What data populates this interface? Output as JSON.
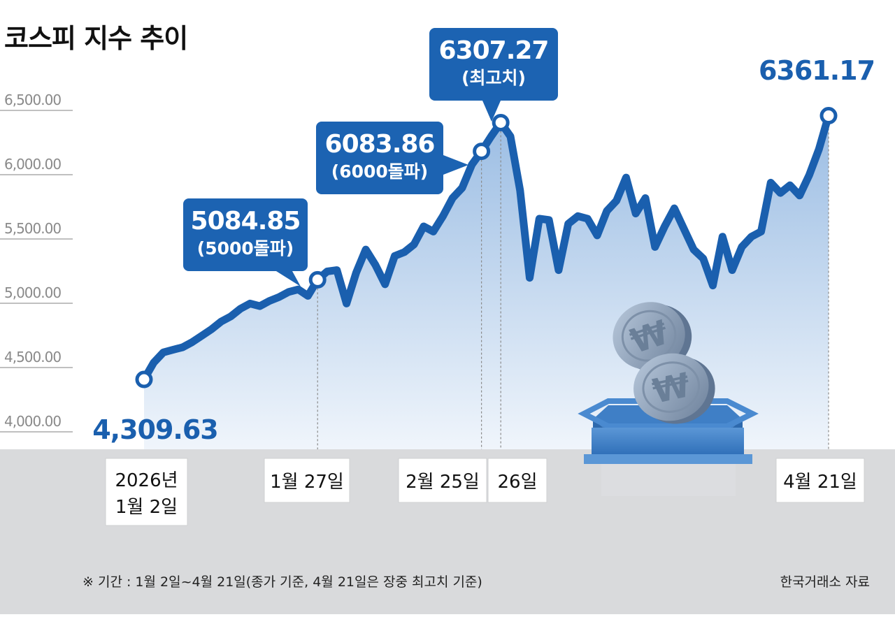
{
  "chart_data": {
    "type": "line",
    "title": "코스피 지수 추이",
    "yticks": [
      "6,500.00",
      "6,000.00",
      "5,500.00",
      "5,000.00",
      "4,500.00",
      "4,000.00"
    ],
    "ylim": [
      3900,
      6650
    ],
    "series": [
      {
        "values": [
          4309.63,
          4440,
          4520,
          4540,
          4560,
          4600,
          4650,
          4700,
          4760,
          4800,
          4860,
          4900,
          4880,
          4920,
          4950,
          4990,
          5010,
          4960,
          5084.85,
          5150,
          5160,
          4900,
          5140,
          5320,
          5200,
          5050,
          5270,
          5300,
          5360,
          5500,
          5460,
          5580,
          5720,
          5800,
          5980,
          6083.86,
          6200,
          6307.27,
          6200,
          5780,
          5100,
          5560,
          5550,
          5160,
          5520,
          5580,
          5560,
          5430,
          5620,
          5700,
          5880,
          5600,
          5720,
          5340,
          5500,
          5640,
          5480,
          5320,
          5250,
          5040,
          5420,
          5160,
          5340,
          5420,
          5460,
          5840,
          5760,
          5820,
          5740,
          5900,
          6100,
          6361.17
        ]
      }
    ],
    "annotations": [
      {
        "value": "4,309.63",
        "note": ""
      },
      {
        "value": "5084.85",
        "note": "(5000돌파)"
      },
      {
        "value": "6083.86",
        "note": "(6000돌파)"
      },
      {
        "value": "6307.27",
        "note": "(최고치)"
      },
      {
        "value": "6361.17",
        "note": ""
      }
    ],
    "date_labels": [
      {
        "line1": "2026년",
        "line2": "1월 2일"
      },
      {
        "line1": "1월 27일",
        "line2": ""
      },
      {
        "line1": "2월 25일",
        "line2": ""
      },
      {
        "line1": "26일",
        "line2": ""
      },
      {
        "line1": "4월 21일",
        "line2": ""
      }
    ],
    "colors": {
      "line": "#1a5fae",
      "callout": "#1c63b2",
      "area_top": "#8fb5e0",
      "area_bottom": "#eef4fb",
      "band": "#d9dadc"
    }
  },
  "footnote": "※ 기간 : 1월 2일~4월 21일(종가 기준, 4월 21일은 장중 최고치 기준)",
  "source": "한국거래소 자료"
}
